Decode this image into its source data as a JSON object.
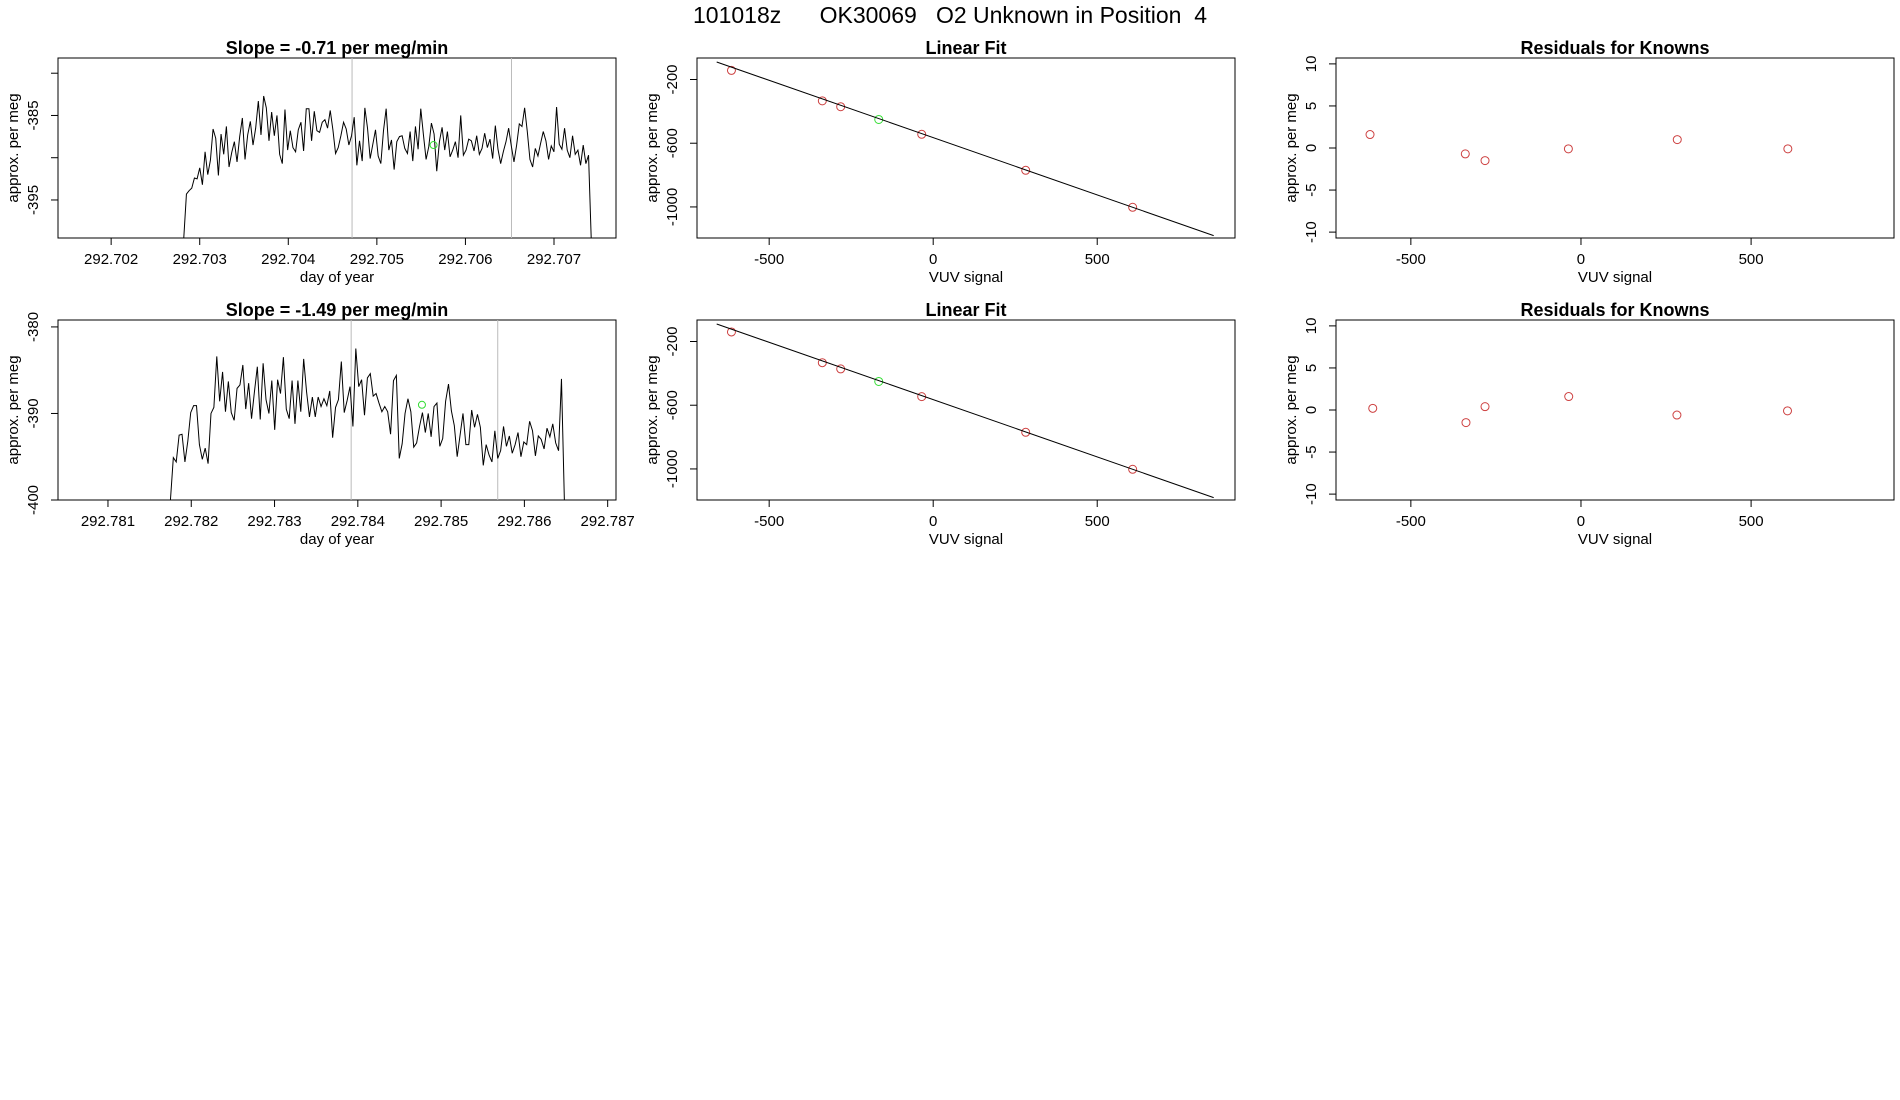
{
  "page": {
    "title": "101018z      OK30069   O2 Unknown in Position  4"
  },
  "colors": {
    "axis": "#000000",
    "series": "#000000",
    "known_point": "#cd4040",
    "unknown_point": "#33dd33",
    "marker_line": "#bbbbbb",
    "background": "#ffffff"
  },
  "chart_data": [
    {
      "id": "slope1",
      "type": "line",
      "title": "Slope =  -0.71  per meg/min",
      "xlabel": "day of year",
      "ylabel": "approx. per meg",
      "xlim": [
        292.7014,
        292.7077
      ],
      "ylim": [
        -399.5,
        -378.2
      ],
      "xticks": [
        292.702,
        292.703,
        292.704,
        292.705,
        292.706,
        292.707
      ],
      "xtick_labels": [
        "292.702",
        "292.703",
        "292.704",
        "292.705",
        "292.706",
        "292.707"
      ],
      "yticks": [
        -395,
        -390,
        -385,
        -380
      ],
      "ytick_labels": [
        "-395",
        "",
        "-385",
        ""
      ],
      "markers_x": [
        292.70472,
        292.70652
      ],
      "unknown_point": [
        292.70564,
        -388.5
      ],
      "series": {
        "x_start": 292.70282,
        "x_end": 292.70742,
        "values": [
          -399.5,
          -394.3,
          -393.9,
          -393.6,
          -392.4,
          -392.5,
          -391.2,
          -393.2,
          -389.3,
          -392.0,
          -390.3,
          -386.6,
          -387.7,
          -392.1,
          -387.2,
          -389.6,
          -386.3,
          -391.1,
          -389.4,
          -388.1,
          -390.5,
          -387.5,
          -385.3,
          -390.2,
          -387.3,
          -385.7,
          -388.5,
          -386.5,
          -383.3,
          -387.3,
          -382.7,
          -384.1,
          -388.0,
          -384.6,
          -387.4,
          -385.0,
          -389.6,
          -390.7,
          -384.3,
          -389.1,
          -386.8,
          -388.8,
          -389.3,
          -386.7,
          -385.8,
          -389.2,
          -384.2,
          -384.2,
          -388.0,
          -384.5,
          -386.8,
          -387.0,
          -385.8,
          -385.5,
          -386.5,
          -384.4,
          -386.7,
          -389.5,
          -388.8,
          -387.4,
          -385.8,
          -386.6,
          -388.5,
          -387.4,
          -385.2,
          -390.9,
          -388.0,
          -390.4,
          -384.1,
          -386.5,
          -390.1,
          -388.4,
          -386.7,
          -389.8,
          -390.7,
          -386.8,
          -384.2,
          -389.1,
          -387.9,
          -391.4,
          -388.1,
          -387.5,
          -387.4,
          -388.9,
          -389.5,
          -386.9,
          -390.4,
          -386.3,
          -389.0,
          -384.2,
          -387.3,
          -390.2,
          -388.7,
          -385.9,
          -387.2,
          -391.6,
          -388.1,
          -386.4,
          -389.1,
          -386.9,
          -389.9,
          -389.1,
          -388.1,
          -390.0,
          -385.0,
          -389.7,
          -389.1,
          -387.8,
          -388.0,
          -389.2,
          -387.4,
          -389.6,
          -388.9,
          -387.1,
          -388.8,
          -387.8,
          -390.1,
          -386.2,
          -389.0,
          -390.7,
          -389.3,
          -388.1,
          -386.5,
          -388.6,
          -390.5,
          -388.5,
          -386.0,
          -386.3,
          -384.1,
          -386.9,
          -390.2,
          -391.1,
          -388.9,
          -389.8,
          -388.3,
          -386.9,
          -388.0,
          -390.2,
          -388.6,
          -389.3,
          -384.0,
          -388.4,
          -389.0,
          -386.5,
          -389.1,
          -390.0,
          -387.4,
          -389.6,
          -389.1,
          -390.9,
          -388.5,
          -390.7,
          -389.7,
          -399.5
        ]
      }
    },
    {
      "id": "fit1",
      "type": "scatter",
      "title": "Linear Fit",
      "xlabel": "VUV signal",
      "ylabel": "approx. per meg",
      "xlim": [
        -720,
        920
      ],
      "ylim": [
        -1195,
        -65
      ],
      "xticks": [
        -500,
        0,
        500
      ],
      "xtick_labels": [
        "-500",
        "0",
        "500"
      ],
      "yticks": [
        -1000,
        -600,
        -200
      ],
      "ytick_labels": [
        "-1000",
        "-600",
        "-200"
      ],
      "fit_line": {
        "x": [
          -660,
          855
        ],
        "y": [
          -90,
          -1180
        ]
      },
      "known_points": [
        {
          "x": -615,
          "y": -143
        },
        {
          "x": -338,
          "y": -334
        },
        {
          "x": -282,
          "y": -371
        },
        {
          "x": -35,
          "y": -544
        },
        {
          "x": 282,
          "y": -770
        },
        {
          "x": 608,
          "y": -1002
        }
      ],
      "unknown_points": [
        {
          "x": -166,
          "y": -451
        }
      ]
    },
    {
      "id": "resid1",
      "type": "scatter",
      "title": "Residuals for Knowns",
      "xlabel": "VUV signal",
      "ylabel": "approx. per meg",
      "xlim": [
        -720,
        920
      ],
      "ylim": [
        -10.7,
        10.7
      ],
      "xticks": [
        -500,
        0,
        500
      ],
      "xtick_labels": [
        "-500",
        "0",
        "500"
      ],
      "yticks": [
        -10,
        -5,
        0,
        5,
        10
      ],
      "ytick_labels": [
        "-10",
        "-5",
        "0",
        "5",
        "10"
      ],
      "known_points": [
        {
          "x": -620,
          "y": 1.6
        },
        {
          "x": -340,
          "y": -0.7
        },
        {
          "x": -282,
          "y": -1.5
        },
        {
          "x": -37,
          "y": -0.1
        },
        {
          "x": 283,
          "y": 1.0
        },
        {
          "x": 608,
          "y": -0.1
        }
      ],
      "unknown_points": []
    },
    {
      "id": "slope2",
      "type": "line",
      "title": "Slope =  -1.49  per meg/min",
      "xlabel": "day of year",
      "ylabel": "approx. per meg",
      "xlim": [
        292.7804,
        292.7871
      ],
      "ylim": [
        -400,
        -379.2
      ],
      "xticks": [
        292.781,
        292.782,
        292.783,
        292.784,
        292.785,
        292.786,
        292.787
      ],
      "xtick_labels": [
        "292.781",
        "292.782",
        "292.783",
        "292.784",
        "292.785",
        "292.786",
        "292.787"
      ],
      "yticks": [
        -400,
        -390,
        -380
      ],
      "ytick_labels": [
        "-400",
        "-390",
        "-380"
      ],
      "markers_x": [
        292.78392,
        292.78568
      ],
      "unknown_point": [
        292.78477,
        -389.0
      ],
      "series": {
        "x_start": 292.78175,
        "x_end": 292.78648,
        "values": [
          -400.0,
          -395.1,
          -395.6,
          -392.5,
          -392.4,
          -395.6,
          -393.2,
          -389.9,
          -389.1,
          -389.1,
          -393.6,
          -395.3,
          -394.0,
          -395.8,
          -390.0,
          -389.3,
          -383.4,
          -388.6,
          -385.2,
          -389.8,
          -386.3,
          -389.9,
          -390.8,
          -387.1,
          -386.7,
          -384.4,
          -389.5,
          -386.5,
          -390.6,
          -387.5,
          -384.6,
          -390.7,
          -384.2,
          -388.4,
          -390.0,
          -386.2,
          -391.9,
          -386.1,
          -387.7,
          -383.5,
          -389.5,
          -390.6,
          -386.2,
          -391.2,
          -386.2,
          -389.8,
          -383.7,
          -387.5,
          -390.4,
          -388.1,
          -390.4,
          -388.1,
          -389.2,
          -388.3,
          -389.1,
          -387.4,
          -392.8,
          -389.3,
          -388.4,
          -384.0,
          -389.9,
          -388.5,
          -386.9,
          -391.5,
          -382.5,
          -386.9,
          -386.1,
          -390.2,
          -385.9,
          -385.4,
          -388.0,
          -387.7,
          -388.8,
          -389.8,
          -389.2,
          -389.8,
          -392.4,
          -386.2,
          -385.6,
          -395.2,
          -393.5,
          -390.0,
          -388.3,
          -389.8,
          -393.9,
          -393.4,
          -391.5,
          -389.9,
          -392.2,
          -390.0,
          -392.7,
          -389.2,
          -388.8,
          -393.8,
          -392.9,
          -388.6,
          -386.6,
          -389.7,
          -391.4,
          -395.0,
          -392.5,
          -390.0,
          -393.6,
          -393.6,
          -389.6,
          -391.6,
          -390.1,
          -391.6,
          -396.0,
          -393.6,
          -394.8,
          -395.6,
          -392.0,
          -395.2,
          -394.3,
          -391.5,
          -393.8,
          -392.6,
          -394.6,
          -393.6,
          -392.2,
          -395.0,
          -393.3,
          -393.6,
          -390.9,
          -392.0,
          -394.9,
          -392.6,
          -393.0,
          -394.1,
          -391.7,
          -392.7,
          -391.2,
          -393.4,
          -394.3,
          -386.0,
          -400.0
        ]
      }
    },
    {
      "id": "fit2",
      "type": "scatter",
      "title": "Linear Fit",
      "xlabel": "VUV signal",
      "ylabel": "approx. per meg",
      "xlim": [
        -720,
        920
      ],
      "ylim": [
        -1195,
        -65
      ],
      "xticks": [
        -500,
        0,
        500
      ],
      "xtick_labels": [
        "-500",
        "0",
        "500"
      ],
      "yticks": [
        -1000,
        -600,
        -200
      ],
      "ytick_labels": [
        "-1000",
        "-600",
        "-200"
      ],
      "fit_line": {
        "x": [
          -660,
          855
        ],
        "y": [
          -90,
          -1180
        ]
      },
      "known_points": [
        {
          "x": -615,
          "y": -140
        },
        {
          "x": -338,
          "y": -333
        },
        {
          "x": -282,
          "y": -372
        },
        {
          "x": -35,
          "y": -546
        },
        {
          "x": 282,
          "y": -770
        },
        {
          "x": 608,
          "y": -1002
        }
      ],
      "unknown_points": [
        {
          "x": -166,
          "y": -451
        }
      ]
    },
    {
      "id": "resid2",
      "type": "scatter",
      "title": "Residuals for Knowns",
      "xlabel": "VUV signal",
      "ylabel": "approx. per meg",
      "xlim": [
        -720,
        920
      ],
      "ylim": [
        -10.7,
        10.7
      ],
      "xticks": [
        -500,
        0,
        500
      ],
      "xtick_labels": [
        "-500",
        "0",
        "500"
      ],
      "yticks": [
        -10,
        -5,
        0,
        5,
        10
      ],
      "ytick_labels": [
        "-10",
        "-5",
        "0",
        "5",
        "10"
      ],
      "known_points": [
        {
          "x": -612,
          "y": 0.2
        },
        {
          "x": -338,
          "y": -1.5
        },
        {
          "x": -282,
          "y": 0.4
        },
        {
          "x": -36,
          "y": 1.6
        },
        {
          "x": 282,
          "y": -0.6
        },
        {
          "x": 607,
          "y": -0.1
        }
      ],
      "unknown_points": []
    }
  ]
}
